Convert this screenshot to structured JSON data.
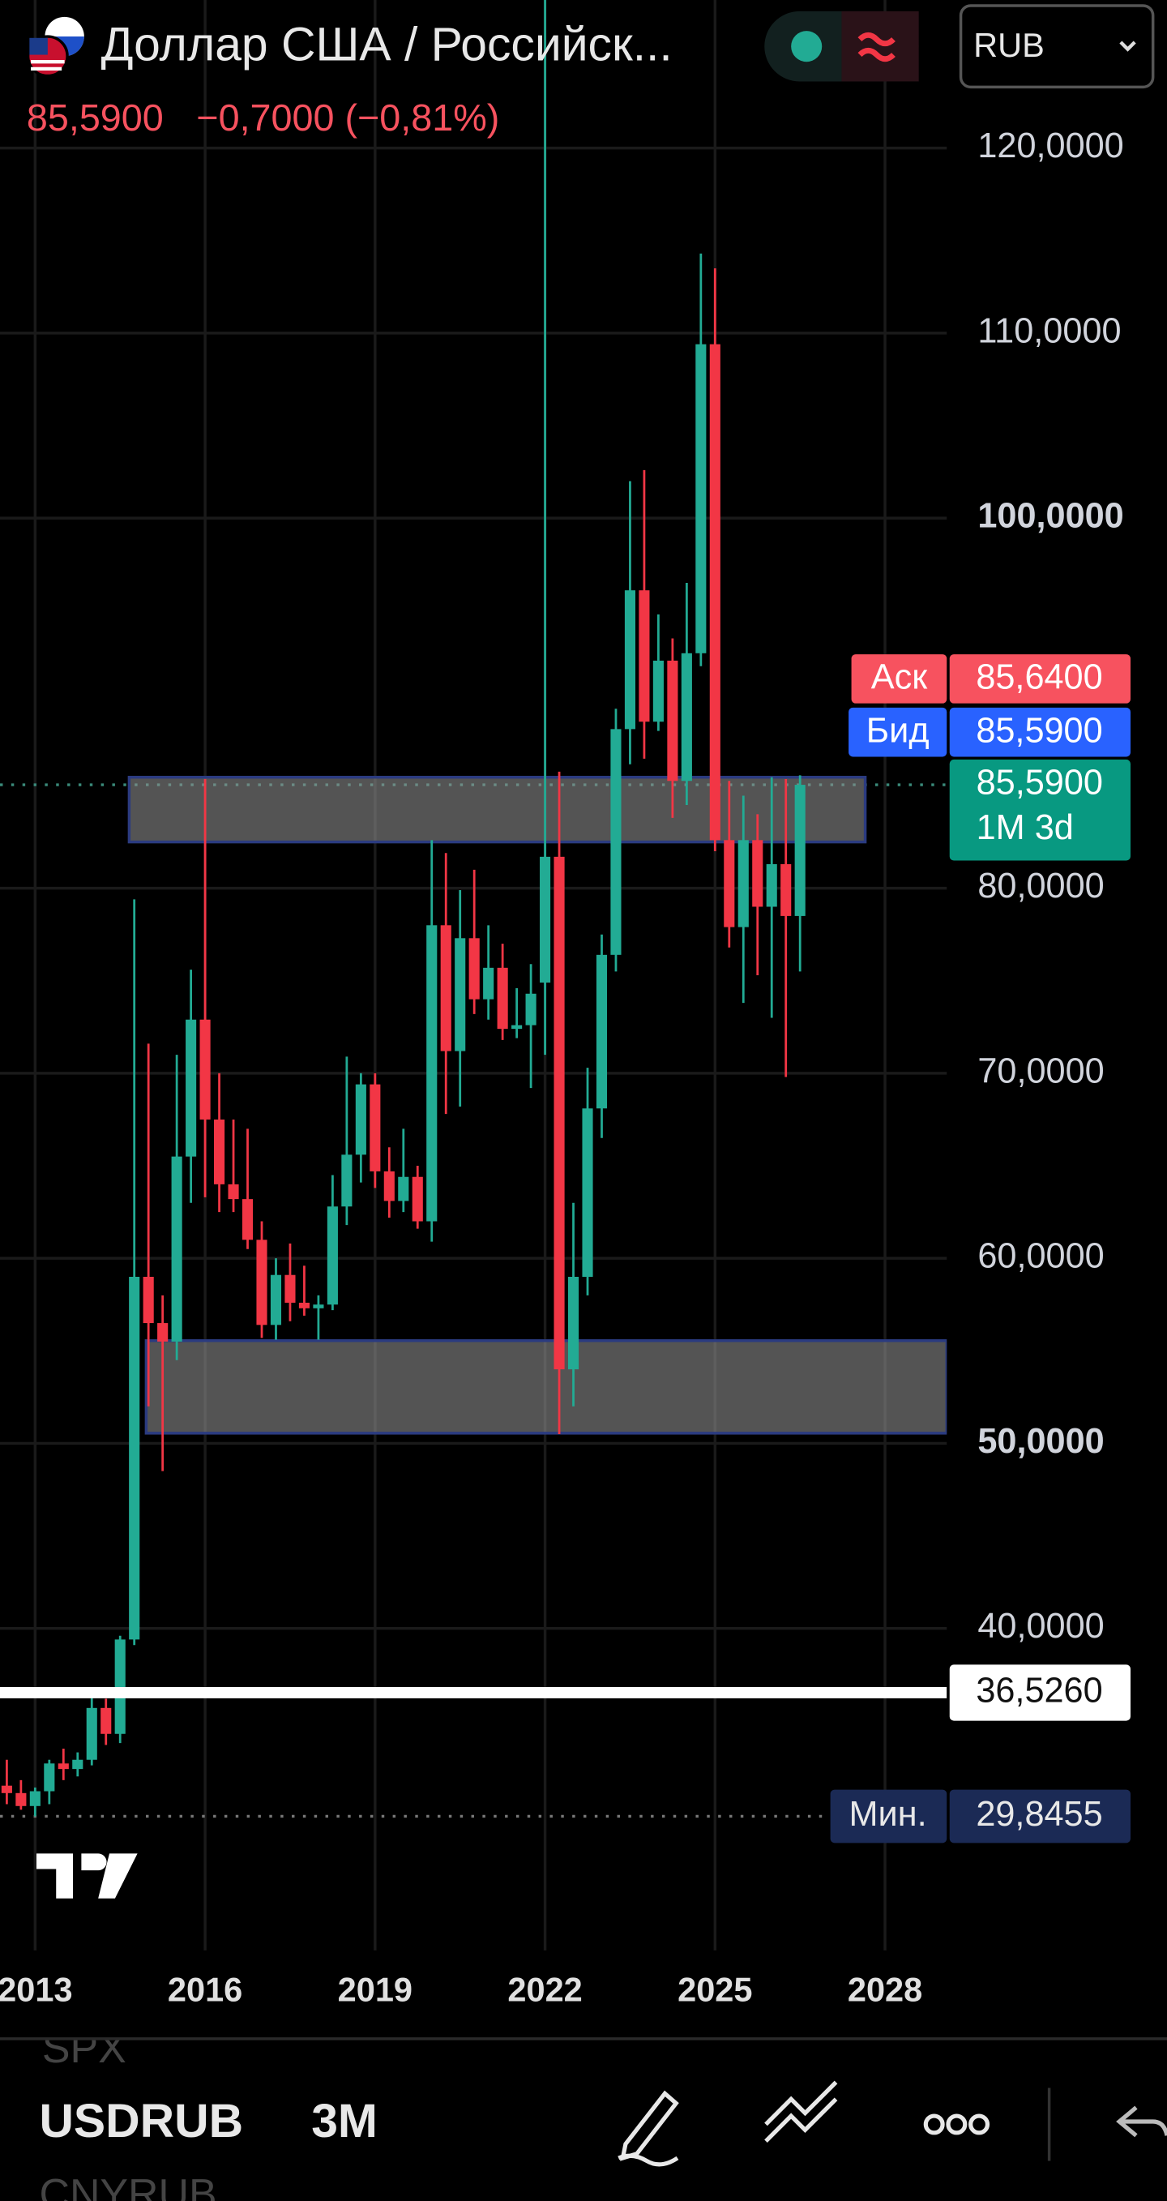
{
  "header": {
    "title": "Доллар США / Российск...",
    "price": "85,5900",
    "change": "−0,7000 (−0,81%)",
    "currency": "RUB"
  },
  "chart_data": {
    "type": "candlestick",
    "x": [
      2012.5,
      2012.75,
      2013.0,
      2013.25,
      2013.5,
      2013.75,
      2014.0,
      2014.25,
      2014.5,
      2014.75,
      2015.0,
      2015.25,
      2015.5,
      2015.75,
      2016.0,
      2016.25,
      2016.5,
      2016.75,
      2017.0,
      2017.25,
      2017.5,
      2017.75,
      2018.0,
      2018.25,
      2018.5,
      2018.75,
      2019.0,
      2019.25,
      2019.5,
      2019.75,
      2020.0,
      2020.25,
      2020.5,
      2020.75,
      2021.0,
      2021.25,
      2021.5,
      2021.75,
      2022.0,
      2022.25,
      2022.5,
      2022.75,
      2023.0,
      2023.25,
      2023.5,
      2023.75,
      2024.0,
      2024.25,
      2024.5,
      2024.75,
      2025.0,
      2025.25,
      2025.5,
      2025.75,
      2026.0,
      2026.25,
      2026.5
    ],
    "open": [
      31.5,
      31.1,
      30.4,
      31.2,
      32.7,
      32.4,
      32.9,
      35.7,
      34.3,
      39.4,
      59.0,
      56.5,
      55.5,
      65.5,
      72.9,
      67.5,
      64.0,
      63.2,
      61.0,
      56.4,
      59.1,
      57.6,
      57.3,
      57.5,
      62.8,
      65.6,
      69.4,
      64.7,
      63.1,
      64.4,
      62.0,
      78.0,
      71.2,
      77.3,
      74.0,
      75.7,
      72.4,
      72.6,
      74.9,
      81.7,
      54.0,
      59.0,
      68.1,
      76.4,
      88.6,
      96.1,
      89.0,
      92.3,
      85.8,
      92.7,
      109.4,
      82.6,
      77.9,
      82.6,
      79.0,
      81.3,
      78.5
    ],
    "high": [
      32.9,
      31.8,
      31.4,
      32.9,
      33.5,
      33.3,
      36.8,
      36.2,
      39.6,
      79.4,
      71.6,
      58.0,
      71.0,
      75.6,
      85.9,
      70.0,
      67.5,
      67.0,
      62.0,
      60.0,
      60.8,
      59.6,
      58.0,
      64.5,
      70.9,
      70.0,
      70.0,
      66.0,
      67.0,
      65.0,
      82.6,
      81.9,
      79.9,
      81.0,
      78.0,
      77.0,
      74.6,
      75.9,
      140,
      86.3,
      63.0,
      70.3,
      77.5,
      89.7,
      102.0,
      102.6,
      94.8,
      93.5,
      96.5,
      114.3,
      113.5,
      85.8,
      85.0,
      84.0,
      86.0,
      85.9,
      86.1
    ],
    "low": [
      30.5,
      30.2,
      29.8455,
      30.5,
      31.8,
      32.0,
      32.6,
      33.7,
      33.8,
      39.1,
      52.0,
      48.5,
      54.5,
      63.0,
      63.3,
      62.5,
      62.5,
      60.5,
      55.7,
      55.6,
      56.6,
      56.9,
      55.6,
      57.2,
      61.8,
      64.1,
      63.8,
      62.2,
      62.5,
      61.6,
      60.9,
      67.8,
      68.2,
      73.2,
      72.9,
      71.8,
      71.9,
      69.2,
      71.0,
      50.5,
      52.0,
      58.0,
      66.5,
      75.5,
      86.7,
      87.0,
      88.5,
      83.8,
      84.5,
      92.0,
      82.0,
      76.8,
      73.8,
      75.3,
      73.0,
      69.8,
      75.5
    ],
    "close": [
      31.1,
      30.4,
      31.2,
      32.7,
      32.4,
      32.9,
      35.7,
      34.3,
      39.4,
      59.0,
      56.5,
      55.5,
      65.5,
      72.9,
      67.5,
      64.0,
      63.2,
      61.0,
      56.4,
      59.1,
      57.6,
      57.3,
      57.5,
      62.8,
      65.6,
      69.4,
      64.7,
      63.1,
      64.4,
      62.0,
      78.0,
      71.2,
      77.3,
      74.0,
      75.7,
      72.4,
      72.6,
      74.3,
      81.7,
      54.0,
      59.0,
      68.1,
      76.4,
      88.6,
      96.1,
      89.0,
      92.3,
      85.8,
      92.7,
      109.4,
      82.6,
      77.9,
      82.6,
      79.0,
      81.3,
      78.5,
      85.59
    ],
    "up_color": "#22ab94",
    "down_color": "#f23645",
    "xlim": [
      2012.38,
      2029.09
    ],
    "ylim": [
      22.6,
      128
    ],
    "xticks": [
      2013,
      2016,
      2019,
      2022,
      2025,
      2028
    ],
    "yticks": [
      {
        "value": 40,
        "label": "40,0000"
      },
      {
        "value": 50,
        "label": "50,0000"
      },
      {
        "value": 60,
        "label": "60,0000"
      },
      {
        "value": 70,
        "label": "70,0000"
      },
      {
        "value": 80,
        "label": "80,0000"
      },
      {
        "value": 100,
        "label": "100,0000"
      },
      {
        "value": 110,
        "label": "110,0000"
      },
      {
        "value": 120,
        "label": "120,0000"
      }
    ],
    "grid": true,
    "ask": {
      "name": "Аск",
      "value": 85.64,
      "label": "85,6400",
      "color": "#f7525f"
    },
    "bid": {
      "name": "Бид",
      "value": 85.59,
      "label": "85,5900",
      "color": "#2962ff"
    },
    "last": {
      "value": 85.59,
      "label": "85,5900",
      "countdown": "1M 3d",
      "color": "#089981"
    },
    "min": {
      "name": "Мин.",
      "value": 29.8455,
      "label": "29,8455",
      "color": "#1b2a55"
    },
    "hline": {
      "value": 36.526,
      "label": "36,5260"
    },
    "zones": [
      {
        "x": [
          2014.66,
          2027.65
        ],
        "y": [
          82.5,
          86.0
        ]
      },
      {
        "x": [
          2014.96,
          2029.09
        ],
        "y": [
          50.55,
          55.55
        ]
      }
    ]
  },
  "toolbar": {
    "symbols": [
      "SPX",
      "USDRUB",
      "CNYRUB"
    ],
    "interval": "3M"
  }
}
